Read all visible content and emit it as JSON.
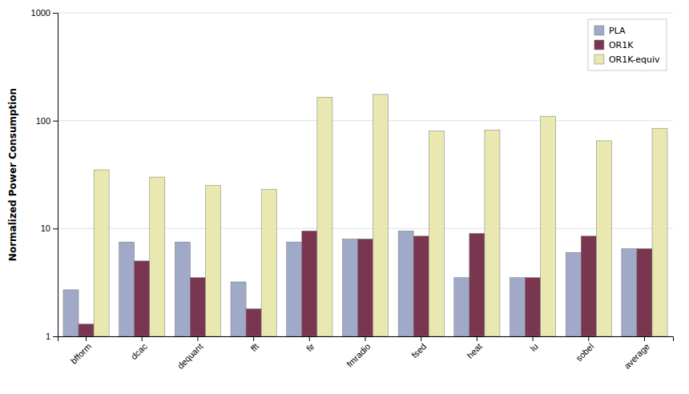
{
  "chart_data": {
    "type": "bar",
    "categories": [
      "bfform",
      "dcac",
      "dequant",
      "fft",
      "fir",
      "fmradio",
      "fsed",
      "heat",
      "lu",
      "sobel",
      "average"
    ],
    "series": [
      {
        "name": "PLA",
        "color": "#a0aac8",
        "values": [
          2.7,
          7.5,
          7.5,
          3.2,
          7.5,
          8.0,
          9.5,
          3.5,
          3.5,
          6.0,
          6.5
        ]
      },
      {
        "name": "OR1K",
        "color": "#7a3550",
        "values": [
          1.3,
          5.0,
          3.5,
          1.8,
          9.5,
          8.0,
          8.5,
          9.0,
          3.5,
          8.5,
          6.5
        ]
      },
      {
        "name": "OR1K-equiv",
        "color": "#e8e8b0",
        "values": [
          35.0,
          30.0,
          25.0,
          23.0,
          165.0,
          175.0,
          80.0,
          82.0,
          110.0,
          65.0,
          85.0
        ]
      }
    ],
    "ylabel": "Normalized Power Consumption",
    "log": "y",
    "ylim": [
      1,
      1000
    ],
    "yticks": [
      1,
      10,
      100,
      1000
    ],
    "grid": true,
    "legend": "upper right"
  }
}
